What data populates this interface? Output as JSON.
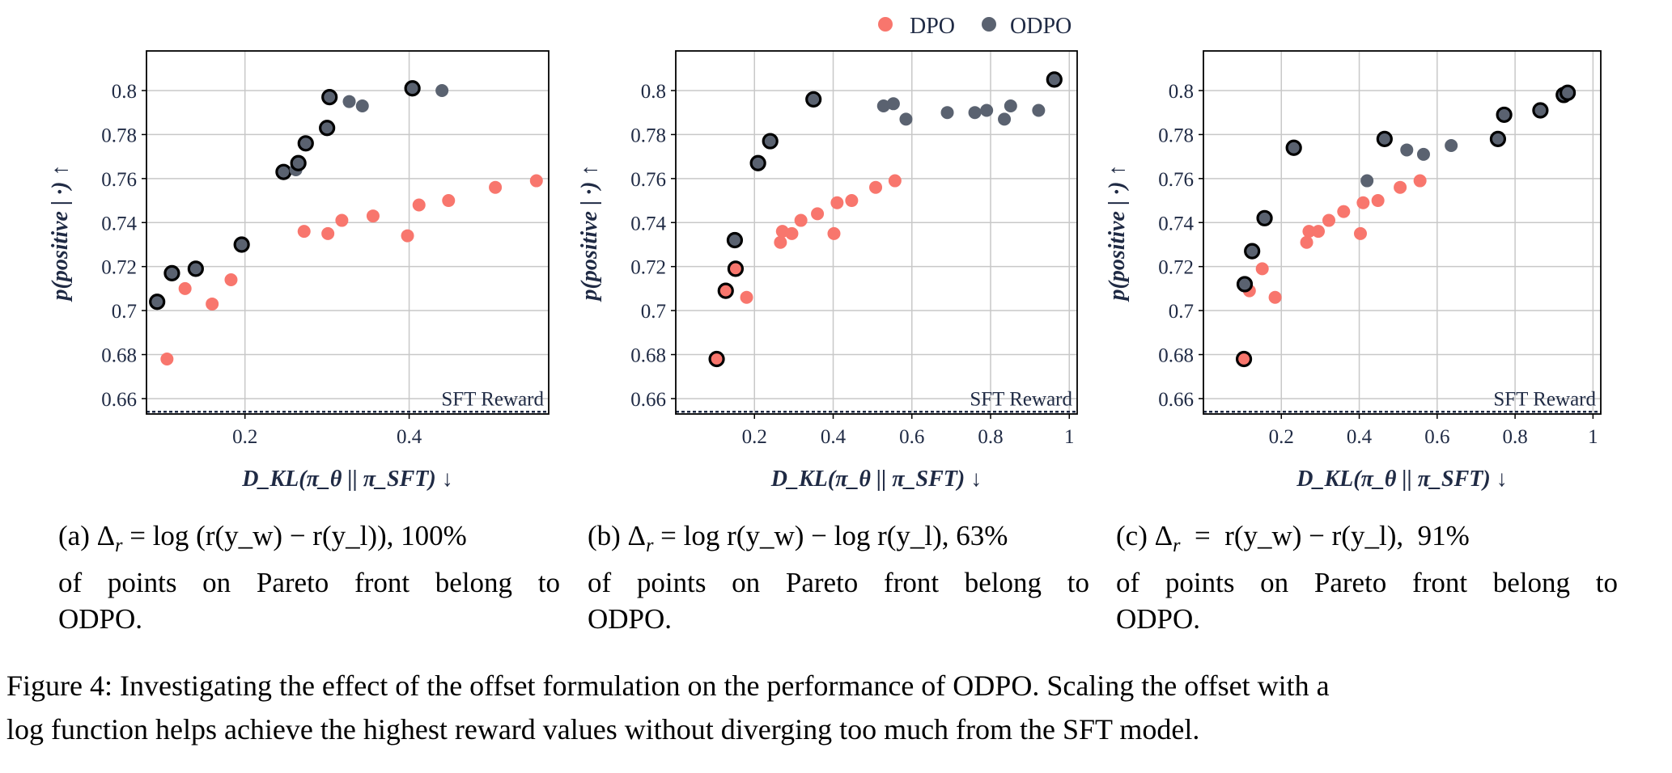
{
  "legend": [
    {
      "name": "DPO",
      "color": "#f8766d"
    },
    {
      "name": "ODPO",
      "color": "#5a6270"
    }
  ],
  "colors": {
    "dpo": "#f8766d",
    "odpo": "#5a6270",
    "axis_text": "#1f2a44",
    "grid": "#c8c8c8",
    "pareto_edge": "#000000"
  },
  "chart_data": [
    {
      "type": "scatter",
      "id": "a",
      "xlabel": "D_KL(π_θ || π_SFT) ↓",
      "ylabel": "p(positive | ·) ↑",
      "xlim": [
        0.08,
        0.57
      ],
      "ylim": [
        0.653,
        0.818
      ],
      "xticks": [
        0.2,
        0.4
      ],
      "xtick_labels": [
        "0.2",
        "0.4"
      ],
      "yticks": [
        0.66,
        0.68,
        0.7,
        0.72,
        0.74,
        0.76,
        0.78,
        0.8
      ],
      "ytick_labels": [
        "0.66",
        "0.68",
        "0.7",
        "0.72",
        "0.74",
        "0.76",
        "0.78",
        "0.8"
      ],
      "grid": true,
      "baseline": {
        "label": "SFT Reward",
        "y": 0.654
      },
      "series": [
        {
          "name": "DPO",
          "points": [
            [
              0.105,
              0.678
            ],
            [
              0.127,
              0.71
            ],
            [
              0.16,
              0.703
            ],
            [
              0.183,
              0.714
            ],
            [
              0.272,
              0.736
            ],
            [
              0.301,
              0.735
            ],
            [
              0.318,
              0.741
            ],
            [
              0.356,
              0.743
            ],
            [
              0.398,
              0.734
            ],
            [
              0.412,
              0.748
            ],
            [
              0.448,
              0.75
            ],
            [
              0.505,
              0.756
            ],
            [
              0.555,
              0.759
            ]
          ],
          "pareto": [
            false,
            false,
            false,
            false,
            false,
            false,
            false,
            false,
            false,
            false,
            false,
            false,
            false
          ]
        },
        {
          "name": "ODPO",
          "points": [
            [
              0.093,
              0.704
            ],
            [
              0.111,
              0.717
            ],
            [
              0.14,
              0.719
            ],
            [
              0.196,
              0.73
            ],
            [
              0.247,
              0.763
            ],
            [
              0.262,
              0.764
            ],
            [
              0.265,
              0.767
            ],
            [
              0.274,
              0.776
            ],
            [
              0.3,
              0.783
            ],
            [
              0.303,
              0.797
            ],
            [
              0.327,
              0.795
            ],
            [
              0.343,
              0.793
            ],
            [
              0.404,
              0.801
            ],
            [
              0.44,
              0.8
            ]
          ],
          "pareto": [
            true,
            true,
            true,
            true,
            true,
            false,
            true,
            true,
            true,
            true,
            false,
            false,
            true,
            false
          ]
        }
      ]
    },
    {
      "type": "scatter",
      "id": "b",
      "xlabel": "D_KL(π_θ || π_SFT) ↓",
      "ylabel": "p(positive | ·) ↑",
      "xlim": [
        0.0,
        1.02
      ],
      "ylim": [
        0.653,
        0.818
      ],
      "xticks": [
        0.2,
        0.4,
        0.6,
        0.8,
        1.0
      ],
      "xtick_labels": [
        "0.2",
        "0.4",
        "0.6",
        "0.8",
        "1"
      ],
      "yticks": [
        0.66,
        0.68,
        0.7,
        0.72,
        0.74,
        0.76,
        0.78,
        0.8
      ],
      "ytick_labels": [
        "0.66",
        "0.68",
        "0.7",
        "0.72",
        "0.74",
        "0.76",
        "0.78",
        "0.8"
      ],
      "grid": true,
      "baseline": {
        "label": "SFT Reward",
        "y": 0.654
      },
      "series": [
        {
          "name": "DPO",
          "points": [
            [
              0.104,
              0.678
            ],
            [
              0.127,
              0.709
            ],
            [
              0.152,
              0.719
            ],
            [
              0.18,
              0.706
            ],
            [
              0.266,
              0.731
            ],
            [
              0.271,
              0.736
            ],
            [
              0.295,
              0.735
            ],
            [
              0.318,
              0.741
            ],
            [
              0.36,
              0.744
            ],
            [
              0.402,
              0.735
            ],
            [
              0.41,
              0.749
            ],
            [
              0.447,
              0.75
            ],
            [
              0.508,
              0.756
            ],
            [
              0.557,
              0.759
            ]
          ],
          "pareto": [
            true,
            true,
            true,
            false,
            false,
            false,
            false,
            false,
            false,
            false,
            false,
            false,
            false,
            false
          ]
        },
        {
          "name": "ODPO",
          "points": [
            [
              0.15,
              0.732
            ],
            [
              0.209,
              0.767
            ],
            [
              0.24,
              0.777
            ],
            [
              0.35,
              0.796
            ],
            [
              0.528,
              0.793
            ],
            [
              0.553,
              0.794
            ],
            [
              0.585,
              0.787
            ],
            [
              0.69,
              0.79
            ],
            [
              0.76,
              0.79
            ],
            [
              0.79,
              0.791
            ],
            [
              0.835,
              0.787
            ],
            [
              0.851,
              0.793
            ],
            [
              0.922,
              0.791
            ],
            [
              0.962,
              0.805
            ]
          ],
          "pareto": [
            true,
            true,
            true,
            true,
            false,
            false,
            false,
            false,
            false,
            false,
            false,
            false,
            false,
            true
          ]
        }
      ]
    },
    {
      "type": "scatter",
      "id": "c",
      "xlabel": "D_KL(π_θ || π_SFT) ↓",
      "ylabel": "p(positive | ·) ↑",
      "xlim": [
        0.0,
        1.02
      ],
      "ylim": [
        0.653,
        0.818
      ],
      "xticks": [
        0.2,
        0.4,
        0.6,
        0.8,
        1.0
      ],
      "xtick_labels": [
        "0.2",
        "0.4",
        "0.6",
        "0.8",
        "1"
      ],
      "yticks": [
        0.66,
        0.68,
        0.7,
        0.72,
        0.74,
        0.76,
        0.78,
        0.8
      ],
      "ytick_labels": [
        "0.66",
        "0.68",
        "0.7",
        "0.72",
        "0.74",
        "0.76",
        "0.78",
        "0.8"
      ],
      "grid": true,
      "baseline": {
        "label": "SFT Reward",
        "y": 0.654
      },
      "series": [
        {
          "name": "DPO",
          "points": [
            [
              0.104,
              0.678
            ],
            [
              0.118,
              0.709
            ],
            [
              0.151,
              0.719
            ],
            [
              0.184,
              0.706
            ],
            [
              0.265,
              0.731
            ],
            [
              0.271,
              0.736
            ],
            [
              0.295,
              0.736
            ],
            [
              0.322,
              0.741
            ],
            [
              0.36,
              0.745
            ],
            [
              0.403,
              0.735
            ],
            [
              0.41,
              0.749
            ],
            [
              0.448,
              0.75
            ],
            [
              0.505,
              0.756
            ],
            [
              0.556,
              0.759
            ]
          ],
          "pareto": [
            true,
            false,
            false,
            false,
            false,
            false,
            false,
            false,
            false,
            false,
            false,
            false,
            false,
            false
          ]
        },
        {
          "name": "ODPO",
          "points": [
            [
              0.106,
              0.712
            ],
            [
              0.125,
              0.727
            ],
            [
              0.157,
              0.742
            ],
            [
              0.232,
              0.774
            ],
            [
              0.42,
              0.759
            ],
            [
              0.465,
              0.778
            ],
            [
              0.522,
              0.773
            ],
            [
              0.565,
              0.771
            ],
            [
              0.636,
              0.775
            ],
            [
              0.756,
              0.778
            ],
            [
              0.772,
              0.789
            ],
            [
              0.865,
              0.791
            ],
            [
              0.925,
              0.798
            ],
            [
              0.935,
              0.799
            ]
          ],
          "pareto": [
            true,
            true,
            true,
            true,
            false,
            true,
            false,
            false,
            false,
            true,
            true,
            true,
            true,
            true
          ]
        }
      ]
    }
  ],
  "subcaptions": [
    {
      "prefix": "(a) Δ",
      "formula": " = log (r(y_w) − r(y_l)), 100%",
      "rest1": "of points on Pareto front belong to",
      "rest2": "ODPO."
    },
    {
      "prefix": "(b) Δ",
      "formula": " = log r(y_w) − log r(y_l), 63%",
      "rest1": "of points on Pareto front belong to",
      "rest2": "ODPO."
    },
    {
      "prefix": "(c) Δ",
      "formula": "  =  r(y_w) − r(y_l),  91%",
      "rest1": "of points on Pareto front belong to",
      "rest2": "ODPO."
    }
  ],
  "subscript_r": "r",
  "caption": {
    "line1": "Figure 4: Investigating the effect of the offset formulation on the performance of ODPO. Scaling the offset with a",
    "line2": "log function helps achieve the highest reward values without diverging too much from the SFT model."
  }
}
